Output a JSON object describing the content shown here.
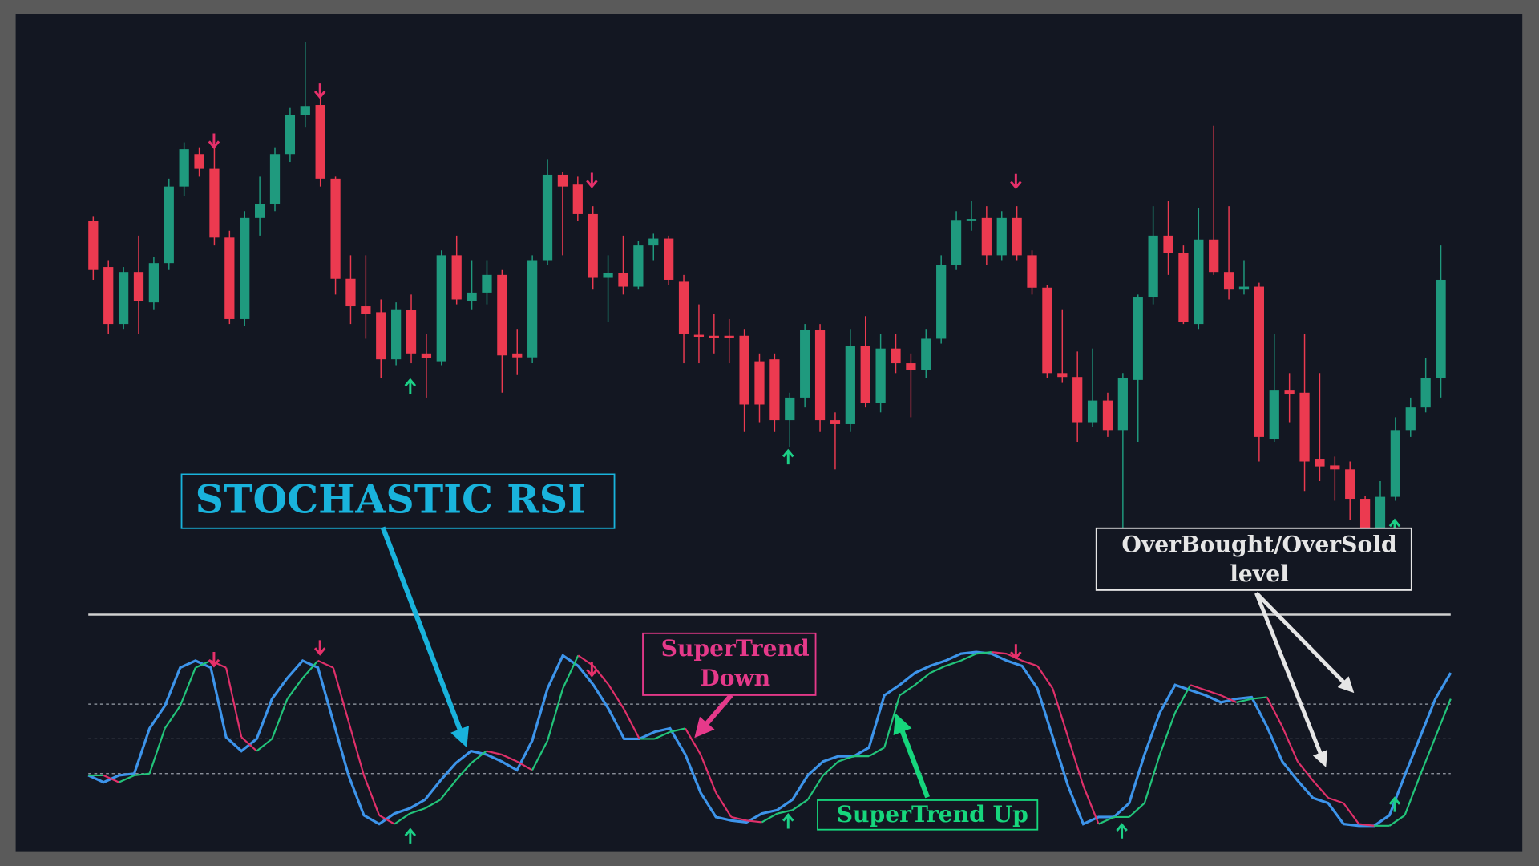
{
  "chart_data": [
    {
      "type": "candlestick",
      "up_color": "#1f9a7e",
      "down_color": "#ec3a50",
      "open": [
        375,
        328,
        270,
        323,
        292,
        332,
        410,
        443,
        428,
        358,
        275,
        378,
        392,
        443,
        483,
        493,
        418,
        316,
        288,
        282,
        234,
        284,
        240,
        232,
        340,
        293,
        302,
        320,
        240,
        236,
        335,
        422,
        412,
        382,
        317,
        322,
        308,
        350,
        357,
        313,
        259,
        258,
        258,
        258,
        232,
        234,
        172,
        195,
        264,
        172,
        168,
        248,
        190,
        245,
        230,
        223,
        255,
        330,
        376,
        378,
        340,
        378,
        340,
        307,
        220,
        216,
        170,
        192,
        162,
        213,
        297,
        360,
        342,
        270,
        356,
        323,
        305,
        308,
        153,
        203,
        200,
        132,
        126,
        122,
        92,
        60,
        94,
        162,
        185,
        215
      ],
      "close": [
        325,
        270,
        323,
        293,
        332,
        410,
        448,
        428,
        358,
        275,
        378,
        392,
        443,
        483,
        492,
        418,
        316,
        288,
        280,
        234,
        285,
        240,
        235,
        340,
        295,
        302,
        320,
        238,
        236,
        335,
        422,
        410,
        382,
        317,
        322,
        308,
        350,
        357,
        315,
        260,
        257,
        256,
        256,
        188,
        188,
        172,
        195,
        264,
        172,
        168,
        248,
        190,
        245,
        230,
        223,
        255,
        330,
        376,
        377,
        340,
        378,
        340,
        307,
        220,
        216,
        170,
        192,
        162,
        215,
        297,
        360,
        342,
        272,
        356,
        323,
        305,
        308,
        155,
        203,
        199,
        130,
        125,
        122,
        92,
        60,
        94,
        162,
        185,
        215,
        315
      ],
      "high": [
        380,
        335,
        328,
        360,
        338,
        418,
        455,
        450,
        450,
        365,
        385,
        420,
        450,
        490,
        557,
        500,
        420,
        340,
        340,
        295,
        292,
        300,
        260,
        345,
        360,
        335,
        335,
        325,
        265,
        340,
        438,
        425,
        420,
        390,
        340,
        360,
        355,
        362,
        360,
        320,
        290,
        280,
        275,
        265,
        240,
        240,
        200,
        270,
        270,
        180,
        265,
        278,
        260,
        260,
        240,
        265,
        340,
        385,
        395,
        390,
        385,
        390,
        345,
        310,
        285,
        242,
        245,
        200,
        220,
        300,
        390,
        395,
        350,
        388,
        472,
        390,
        335,
        312,
        260,
        220,
        260,
        220,
        135,
        130,
        95,
        110,
        175,
        195,
        235,
        350
      ],
      "low": [
        315,
        260,
        265,
        260,
        285,
        325,
        400,
        420,
        350,
        270,
        268,
        360,
        385,
        435,
        470,
        410,
        300,
        270,
        255,
        215,
        228,
        230,
        195,
        228,
        290,
        285,
        290,
        200,
        218,
        230,
        330,
        340,
        375,
        305,
        272,
        300,
        305,
        335,
        310,
        230,
        230,
        240,
        230,
        160,
        170,
        160,
        145,
        185,
        160,
        122,
        160,
        185,
        180,
        220,
        175,
        215,
        250,
        325,
        365,
        330,
        335,
        335,
        300,
        215,
        210,
        150,
        165,
        155,
        60,
        150,
        290,
        320,
        270,
        265,
        320,
        295,
        300,
        130,
        150,
        170,
        100,
        110,
        90,
        70,
        60,
        60,
        90,
        155,
        180,
        195
      ]
    },
    {
      "type": "line",
      "ylim": [
        0,
        100
      ],
      "levels": [
        70,
        50,
        30
      ],
      "series": [
        {
          "color": "#3d94ea",
          "values": [
            29,
            25,
            29,
            30,
            56,
            69,
            91,
            95,
            91,
            51,
            43,
            50,
            73,
            85,
            95,
            91,
            60,
            29,
            6,
            1,
            7,
            10,
            15,
            26,
            36,
            43,
            41,
            37,
            32,
            49,
            79,
            98,
            92,
            81,
            67,
            50,
            50,
            54,
            56,
            41,
            19,
            5,
            3,
            2,
            7,
            9,
            15,
            29,
            37,
            40,
            40,
            45,
            75,
            81,
            88,
            92,
            95,
            99,
            100,
            99,
            95,
            92,
            79,
            51,
            23,
            1,
            5,
            5,
            13,
            41,
            65,
            81,
            78,
            75,
            71,
            73,
            74,
            57,
            37,
            26,
            16,
            13,
            1,
            0,
            0,
            6,
            29,
            51,
            73,
            88
          ]
        },
        {
          "up_color": "#22c47a",
          "down_color": "#e0306a",
          "values": [
            29,
            29,
            25,
            29,
            30,
            56,
            69,
            91,
            95,
            91,
            51,
            43,
            50,
            73,
            85,
            95,
            91,
            60,
            29,
            6,
            1,
            7,
            10,
            15,
            26,
            36,
            43,
            41,
            37,
            32,
            49,
            79,
            98,
            92,
            81,
            67,
            50,
            50,
            54,
            56,
            41,
            19,
            5,
            3,
            2,
            7,
            9,
            15,
            29,
            37,
            40,
            40,
            45,
            75,
            81,
            88,
            92,
            95,
            99,
            100,
            99,
            95,
            92,
            79,
            51,
            23,
            1,
            5,
            5,
            13,
            41,
            65,
            81,
            78,
            75,
            71,
            73,
            74,
            57,
            37,
            26,
            16,
            13,
            1,
            0,
            0,
            6,
            29,
            51,
            73
          ]
        }
      ]
    }
  ],
  "annotations": {
    "stoch": "STOCHASTIC RSI",
    "down": [
      "SuperTrend",
      "Down"
    ],
    "up": "SuperTrend Up",
    "level": [
      "OverBought/OverSold",
      "level"
    ]
  }
}
